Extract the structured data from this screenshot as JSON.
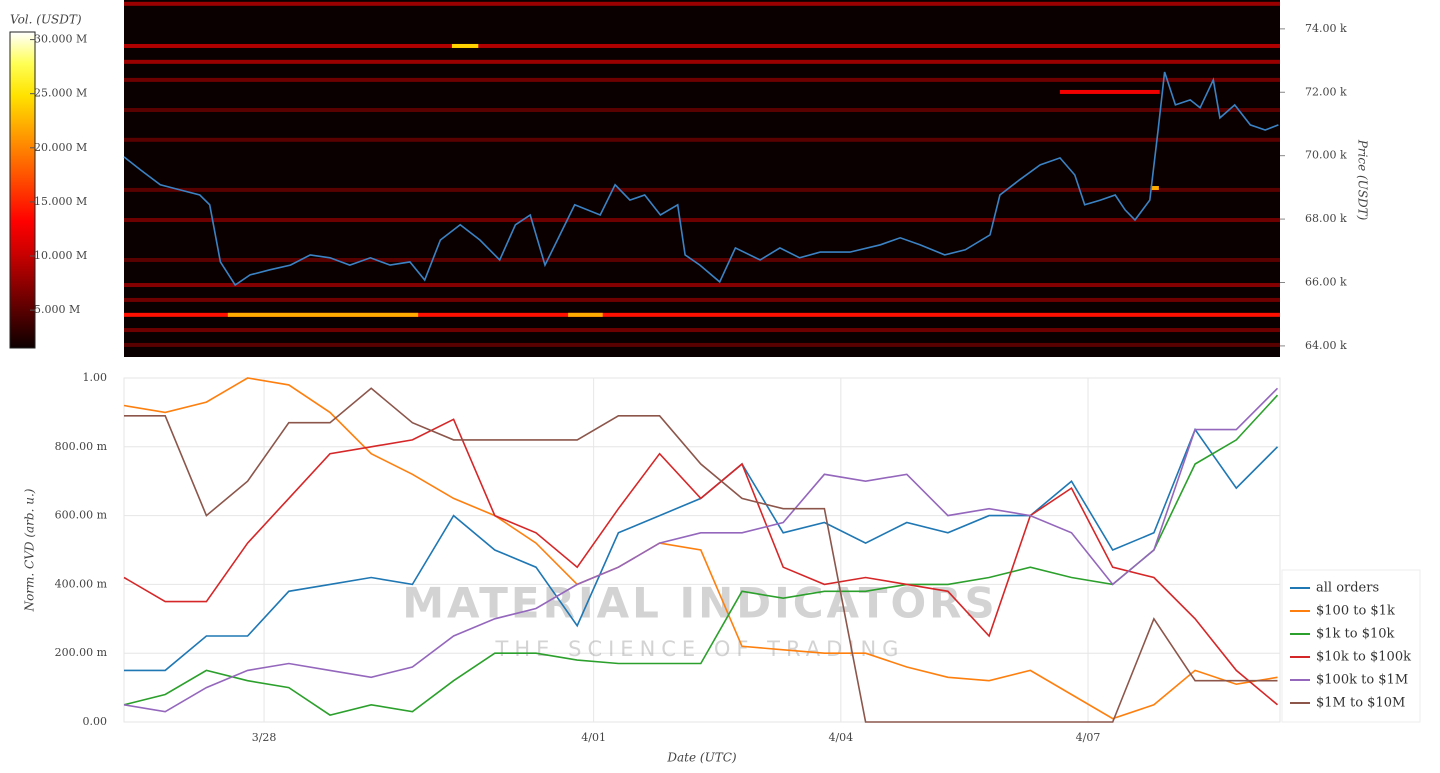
{
  "chart_data": [
    {
      "type": "heatmap",
      "ylabel": "Price (USDT)",
      "colorbar_label": "Vol. (USDT)",
      "xlim": [
        -1.7,
        12.33
      ],
      "ylim": [
        63650,
        74910
      ],
      "yticks": [
        {
          "value": 64000,
          "label": "64.00 k"
        },
        {
          "value": 66000,
          "label": "66.00 k"
        },
        {
          "value": 68000,
          "label": "68.00 k"
        },
        {
          "value": 70000,
          "label": "70.00 k"
        },
        {
          "value": 72000,
          "label": "72.00 k"
        },
        {
          "value": 74000,
          "label": "74.00 k"
        }
      ],
      "zlim": [
        1500000,
        30700000
      ],
      "zticks": [
        {
          "value": 5000000,
          "label": "5.000 M"
        },
        {
          "value": 10000000,
          "label": "10.000 M"
        },
        {
          "value": 15000000,
          "label": "15.000 M"
        },
        {
          "value": 20000000,
          "label": "20.000 M"
        },
        {
          "value": 25000000,
          "label": "25.000 M"
        },
        {
          "value": 30000000,
          "label": "30.000 M"
        }
      ],
      "levels": {
        "prices": [
          74790,
          73460,
          72960,
          72390,
          71440,
          70500,
          68920,
          67970,
          66710,
          65920,
          65450,
          64980,
          64500,
          64030
        ],
        "volumes": [
          8000000,
          9000000,
          8000000,
          6000000,
          5000000,
          5000000,
          5000000,
          6000000,
          5000000,
          7000000,
          6000000,
          14000000,
          6000000,
          5000000
        ]
      },
      "segments": {
        "x_start": [
          2.28,
          -0.44,
          3.69,
          9.66,
          10.76
        ],
        "x_end": [
          2.6,
          1.87,
          4.11,
          10.87,
          10.86
        ],
        "price": [
          73460,
          64980,
          64980,
          72010,
          68980
        ],
        "volume": [
          24000000,
          22000000,
          22000000,
          12000000,
          22000000
        ]
      },
      "price": {
        "color": "#3b82c4",
        "x": [
          -1.7,
          -1.5,
          -1.26,
          -1.02,
          -0.78,
          -0.66,
          -0.53,
          -0.35,
          -0.17,
          0.07,
          0.32,
          0.56,
          0.8,
          1.04,
          1.29,
          1.53,
          1.77,
          1.95,
          2.14,
          2.38,
          2.62,
          2.86,
          3.05,
          3.23,
          3.41,
          3.59,
          3.77,
          4.08,
          4.26,
          4.44,
          4.62,
          4.81,
          5.02,
          5.11,
          5.29,
          5.53,
          5.72,
          6.02,
          6.26,
          6.5,
          6.75,
          7.11,
          7.48,
          7.72,
          7.96,
          8.26,
          8.51,
          8.81,
          8.93,
          9.17,
          9.42,
          9.66,
          9.84,
          9.96,
          10.15,
          10.33,
          10.45,
          10.57,
          10.75,
          10.85,
          10.93,
          11.06,
          11.24,
          11.36,
          11.52,
          11.6,
          11.78,
          11.97,
          12.15,
          12.31
        ],
        "values": [
          69960,
          69550,
          69080,
          68920,
          68760,
          68450,
          66650,
          65920,
          66240,
          66400,
          66550,
          66870,
          66780,
          66550,
          66780,
          66550,
          66650,
          66080,
          67340,
          67820,
          67340,
          66710,
          67820,
          68130,
          66550,
          67500,
          68450,
          68130,
          69080,
          68600,
          68760,
          68130,
          68450,
          66870,
          66550,
          66020,
          67090,
          66710,
          67090,
          66780,
          66960,
          66960,
          67190,
          67410,
          67190,
          66870,
          67030,
          67500,
          68760,
          69240,
          69710,
          69930,
          69390,
          68450,
          68600,
          68760,
          68290,
          67970,
          68600,
          70810,
          72640,
          71600,
          71760,
          71510,
          72390,
          71190,
          71600,
          70970,
          70810,
          70970
        ]
      }
    },
    {
      "type": "line",
      "xlabel": "Date (UTC)",
      "ylabel": "Norm. CVD (arb. u.)",
      "xlim": [
        -1.7,
        12.33
      ],
      "xticks": [
        {
          "value": 0,
          "label": "3/28"
        },
        {
          "value": 4,
          "label": "4/01"
        },
        {
          "value": 7,
          "label": "4/04"
        },
        {
          "value": 10,
          "label": "4/07"
        }
      ],
      "ylim": [
        0,
        1
      ],
      "yticks": [
        {
          "value": 0,
          "label": "0.00"
        },
        {
          "value": 0.2,
          "label": "200.00 m"
        },
        {
          "value": 0.4,
          "label": "400.00 m"
        },
        {
          "value": 0.6,
          "label": "600.00 m"
        },
        {
          "value": 0.8,
          "label": "800.00 m"
        },
        {
          "value": 1,
          "label": "1.00"
        }
      ],
      "grid": true,
      "legend": "lower right",
      "watermark": {
        "title": "MATERIAL INDICATORS",
        "subtitle": "THE SCIENCE OF TRADING"
      },
      "x": [
        -1.7,
        -1.2,
        -0.7,
        -0.2,
        0.3,
        0.8,
        1.3,
        1.8,
        2.3,
        2.8,
        3.3,
        3.8,
        4.3,
        4.8,
        5.3,
        5.8,
        6.3,
        6.8,
        7.3,
        7.8,
        8.3,
        8.8,
        9.3,
        9.8,
        10.3,
        10.8,
        11.3,
        11.8,
        12.3
      ],
      "series": [
        {
          "name": "all orders",
          "color": "#1f77b4",
          "values": [
            0.15,
            0.15,
            0.25,
            0.25,
            0.38,
            0.4,
            0.42,
            0.4,
            0.6,
            0.5,
            0.45,
            0.28,
            0.55,
            0.6,
            0.65,
            0.75,
            0.55,
            0.58,
            0.52,
            0.58,
            0.55,
            0.6,
            0.6,
            0.7,
            0.5,
            0.55,
            0.85,
            0.68,
            0.8
          ]
        },
        {
          "name": "$100 to $1k",
          "color": "#ff7f0e",
          "values": [
            0.92,
            0.9,
            0.93,
            1.0,
            0.98,
            0.9,
            0.78,
            0.72,
            0.65,
            0.6,
            0.52,
            0.4,
            0.45,
            0.52,
            0.5,
            0.22,
            0.21,
            0.2,
            0.2,
            0.16,
            0.13,
            0.12,
            0.15,
            0.08,
            0.01,
            0.05,
            0.15,
            0.11,
            0.13
          ]
        },
        {
          "name": "$1k to $10k",
          "color": "#2ca02c",
          "values": [
            0.05,
            0.08,
            0.15,
            0.12,
            0.1,
            0.02,
            0.05,
            0.03,
            0.12,
            0.2,
            0.2,
            0.18,
            0.17,
            0.17,
            0.17,
            0.38,
            0.36,
            0.38,
            0.38,
            0.4,
            0.4,
            0.42,
            0.45,
            0.42,
            0.4,
            0.5,
            0.75,
            0.82,
            0.95
          ]
        },
        {
          "name": "$10k to $100k",
          "color": "#d62728",
          "values": [
            0.42,
            0.35,
            0.35,
            0.52,
            0.65,
            0.78,
            0.8,
            0.82,
            0.88,
            0.6,
            0.55,
            0.45,
            0.62,
            0.78,
            0.65,
            0.75,
            0.45,
            0.4,
            0.42,
            0.4,
            0.38,
            0.25,
            0.6,
            0.68,
            0.45,
            0.42,
            0.3,
            0.15,
            0.05
          ]
        },
        {
          "name": "$100k to $1M",
          "color": "#9467bd",
          "values": [
            0.05,
            0.03,
            0.1,
            0.15,
            0.17,
            0.15,
            0.13,
            0.16,
            0.25,
            0.3,
            0.33,
            0.4,
            0.45,
            0.52,
            0.55,
            0.55,
            0.58,
            0.72,
            0.7,
            0.72,
            0.6,
            0.62,
            0.6,
            0.55,
            0.4,
            0.5,
            0.85,
            0.85,
            0.97
          ]
        },
        {
          "name": "$1M to $10M",
          "color": "#8c564b",
          "values": [
            0.89,
            0.89,
            0.6,
            0.7,
            0.87,
            0.87,
            0.97,
            0.87,
            0.82,
            0.82,
            0.82,
            0.82,
            0.89,
            0.89,
            0.75,
            0.65,
            0.62,
            0.62,
            0,
            0,
            0,
            0,
            0,
            0,
            0,
            0.3,
            0.12,
            0.12,
            0.12
          ]
        }
      ]
    }
  ]
}
